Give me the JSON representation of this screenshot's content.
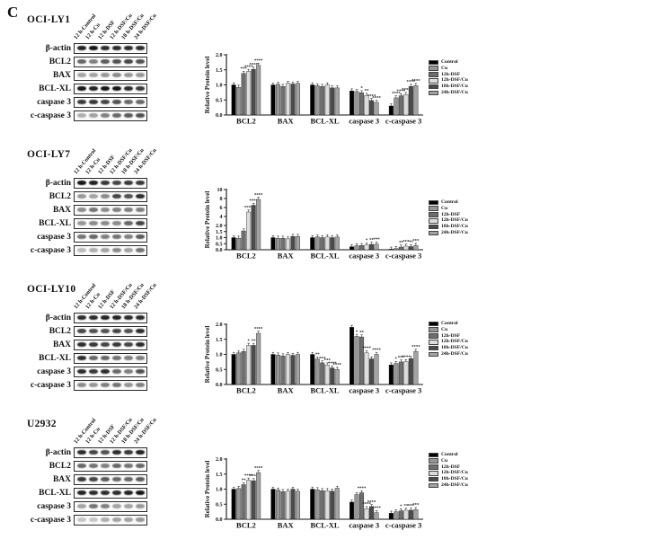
{
  "figure_label": "C",
  "lane_labels": [
    "12 h-Control",
    "12 h-Cu",
    "12 h-DSF",
    "12 h-DSF/Cu",
    "18 h-DSF/Cu",
    "24 h-DSF/Cu"
  ],
  "blot_targets": [
    "β-actin",
    "BCL2",
    "BAX",
    "BCL-XL",
    "caspase 3",
    "c-caspase 3"
  ],
  "legend": {
    "labels": [
      "Control",
      "Cu",
      "12h-DSF",
      "12h-DSF/Cu",
      "18h-DSF/Cu",
      "24h-DSF/Cu"
    ],
    "colors": [
      "#000000",
      "#969696",
      "#6e6e6e",
      "#dcdcdc",
      "#4b4b4b",
      "#a3a3a3"
    ],
    "position": "right"
  },
  "panels": [
    {
      "cell_line": "OCI-LY1",
      "blot_bands": [
        [
          0.9,
          0.95,
          0.85,
          0.85,
          0.85,
          0.85
        ],
        [
          0.6,
          0.5,
          0.65,
          0.7,
          0.75,
          0.7
        ],
        [
          0.35,
          0.35,
          0.4,
          0.45,
          0.4,
          0.4
        ],
        [
          0.95,
          0.9,
          0.95,
          0.95,
          0.85,
          0.8
        ],
        [
          0.8,
          0.8,
          0.75,
          0.7,
          0.6,
          0.6
        ],
        [
          0.3,
          0.35,
          0.5,
          0.6,
          0.65,
          0.7
        ]
      ]
    },
    {
      "cell_line": "OCI-LY7",
      "blot_bands": [
        [
          0.95,
          0.9,
          0.8,
          0.75,
          0.8,
          0.8
        ],
        [
          0.4,
          0.35,
          0.45,
          0.75,
          0.7,
          0.85
        ],
        [
          0.45,
          0.55,
          0.45,
          0.5,
          0.5,
          0.5
        ],
        [
          0.4,
          0.45,
          0.45,
          0.45,
          0.6,
          0.75
        ],
        [
          0.55,
          0.6,
          0.5,
          0.55,
          0.5,
          0.65
        ],
        [
          0.25,
          0.3,
          0.35,
          0.45,
          0.35,
          0.55
        ]
      ]
    },
    {
      "cell_line": "OCI-LY10",
      "blot_bands": [
        [
          0.85,
          0.85,
          0.9,
          0.9,
          0.85,
          0.85
        ],
        [
          0.75,
          0.7,
          0.7,
          0.75,
          0.7,
          0.85
        ],
        [
          0.85,
          0.8,
          0.75,
          0.8,
          0.75,
          0.85
        ],
        [
          0.85,
          0.6,
          0.6,
          0.55,
          0.5,
          0.5
        ],
        [
          0.85,
          0.8,
          0.85,
          0.6,
          0.5,
          0.7
        ],
        [
          0.45,
          0.4,
          0.5,
          0.55,
          0.4,
          0.5
        ]
      ]
    },
    {
      "cell_line": "U2932",
      "blot_bands": [
        [
          0.85,
          0.75,
          0.7,
          0.85,
          0.8,
          0.9
        ],
        [
          0.6,
          0.55,
          0.5,
          0.6,
          0.55,
          0.6
        ],
        [
          0.8,
          0.75,
          0.65,
          0.6,
          0.6,
          0.65
        ],
        [
          0.9,
          0.85,
          0.85,
          0.85,
          0.9,
          0.95
        ],
        [
          0.35,
          0.55,
          0.5,
          0.35,
          0.35,
          0.4
        ],
        [
          0.2,
          0.2,
          0.3,
          0.35,
          0.35,
          0.4
        ]
      ]
    }
  ],
  "chart_data": [
    {
      "type": "bar",
      "title": "OCI-LY1",
      "ylabel": "Relative Protein level",
      "ylim": [
        0,
        2
      ],
      "ybreak": null,
      "yticks": [
        "0.0",
        "0.5",
        "1.0",
        "1.5",
        "2.0"
      ],
      "categories": [
        "BCL2",
        "BAX",
        "BCL-XL",
        "caspase 3",
        "c-caspase 3"
      ],
      "series": [
        {
          "name": "Control",
          "values": [
            1.0,
            1.0,
            1.0,
            0.8,
            0.3
          ]
        },
        {
          "name": "Cu",
          "values": [
            0.92,
            1.02,
            0.97,
            0.78,
            0.57
          ]
        },
        {
          "name": "12h-DSF",
          "values": [
            1.38,
            0.95,
            0.95,
            0.74,
            0.64
          ]
        },
        {
          "name": "12h-DSF/Cu",
          "values": [
            1.45,
            1.05,
            1.0,
            0.65,
            0.68
          ]
        },
        {
          "name": "18h-DSF/Cu",
          "values": [
            1.52,
            1.03,
            0.9,
            0.48,
            0.95
          ]
        },
        {
          "name": "24h-DSF/Cu",
          "values": [
            1.65,
            1.05,
            0.9,
            0.42,
            0.98
          ]
        }
      ],
      "significance": [
        [
          "",
          "",
          "***",
          "****",
          "****",
          "****"
        ],
        [
          "",
          "",
          "",
          "",
          "",
          ""
        ],
        [
          "",
          "",
          "",
          "",
          "",
          ""
        ],
        [
          "",
          "",
          "*",
          "**",
          "****",
          "****"
        ],
        [
          "",
          "****",
          "****",
          "****",
          "****",
          "****"
        ]
      ]
    },
    {
      "type": "bar",
      "title": "OCI-LY7",
      "ylabel": "Relative Protein level",
      "ylim": [
        0,
        10
      ],
      "ybreak": 2,
      "yticks": [
        "0.0",
        "0.5",
        "1.0",
        "1.5",
        "2.0",
        "4",
        "6",
        "8",
        "10"
      ],
      "categories": [
        "BCL2",
        "BAX",
        "BCL-XL",
        "caspase 3",
        "c-caspase 3"
      ],
      "series": [
        {
          "name": "Control",
          "values": [
            1.0,
            1.0,
            1.0,
            0.25,
            0.05
          ]
        },
        {
          "name": "Cu",
          "values": [
            0.95,
            0.95,
            1.05,
            0.33,
            0.1
          ]
        },
        {
          "name": "12h-DSF",
          "values": [
            1.55,
            0.95,
            1.0,
            0.35,
            0.22
          ]
        },
        {
          "name": "12h-DSF/Cu",
          "values": [
            5.0,
            0.9,
            1.05,
            0.4,
            0.3
          ]
        },
        {
          "name": "18h-DSF/Cu",
          "values": [
            6.5,
            1.1,
            1.0,
            0.44,
            0.26
          ]
        },
        {
          "name": "24h-DSF/Cu",
          "values": [
            7.8,
            1.1,
            1.05,
            0.46,
            0.36
          ]
        }
      ],
      "significance": [
        [
          "",
          "",
          "",
          "****",
          "****",
          "****"
        ],
        [
          "",
          "",
          "",
          "",
          "",
          ""
        ],
        [
          "",
          "",
          "",
          "",
          "",
          ""
        ],
        [
          "",
          "",
          "",
          "*",
          "**",
          "***"
        ],
        [
          "",
          "",
          "**",
          "***",
          "**",
          "***"
        ]
      ]
    },
    {
      "type": "bar",
      "title": "OCI-LY10",
      "ylabel": "Relative Protein level",
      "ylim": [
        0,
        2
      ],
      "ybreak": null,
      "yticks": [
        "0.0",
        "0.5",
        "1.0",
        "1.5",
        "2.0"
      ],
      "categories": [
        "BCL2",
        "BAX",
        "BCL-XL",
        "caspase 3",
        "c-caspase 3"
      ],
      "series": [
        {
          "name": "Control",
          "values": [
            1.0,
            1.0,
            1.0,
            1.9,
            0.65
          ]
        },
        {
          "name": "Cu",
          "values": [
            1.05,
            0.98,
            0.85,
            1.6,
            0.7
          ]
        },
        {
          "name": "12h-DSF",
          "values": [
            1.1,
            0.95,
            0.72,
            1.58,
            0.75
          ]
        },
        {
          "name": "12h-DSF/Cu",
          "values": [
            1.3,
            1.0,
            0.65,
            1.05,
            0.76
          ]
        },
        {
          "name": "18h-DSF/Cu",
          "values": [
            1.3,
            0.97,
            0.55,
            0.85,
            0.86
          ]
        },
        {
          "name": "24h-DSF/Cu",
          "values": [
            1.7,
            1.0,
            0.5,
            1.0,
            1.1
          ]
        }
      ],
      "significance": [
        [
          "",
          "",
          "",
          "*",
          "**",
          "****"
        ],
        [
          "",
          "",
          "",
          "",
          "",
          ""
        ],
        [
          "",
          "**",
          "***",
          "***",
          "****",
          "****"
        ],
        [
          "",
          "*",
          "**",
          "****",
          "",
          "****"
        ],
        [
          "",
          "*",
          "***",
          "****",
          "",
          "****"
        ]
      ]
    },
    {
      "type": "bar",
      "title": "U2932",
      "ylabel": "Relative Protein level",
      "ylim": [
        0,
        2
      ],
      "ybreak": null,
      "yticks": [
        "0.0",
        "0.5",
        "1.0",
        "1.5",
        "2.0"
      ],
      "categories": [
        "BCL2",
        "BAX",
        "BCL-XL",
        "caspase 3",
        "c-caspase 3"
      ],
      "series": [
        {
          "name": "Control",
          "values": [
            1.0,
            1.0,
            1.0,
            0.57,
            0.2
          ]
        },
        {
          "name": "Cu",
          "values": [
            1.02,
            0.97,
            0.98,
            0.82,
            0.25
          ]
        },
        {
          "name": "12h-DSF",
          "values": [
            1.15,
            0.92,
            0.95,
            0.88,
            0.28
          ]
        },
        {
          "name": "12h-DSF/Cu",
          "values": [
            1.3,
            0.93,
            0.95,
            0.35,
            0.3
          ]
        },
        {
          "name": "18h-DSF/Cu",
          "values": [
            1.28,
            1.0,
            0.93,
            0.42,
            0.3
          ]
        },
        {
          "name": "24h-DSF/Cu",
          "values": [
            1.55,
            0.93,
            1.03,
            0.22,
            0.32
          ]
        }
      ],
      "significance": [
        [
          "",
          "",
          "**",
          "****",
          "****",
          "****"
        ],
        [
          "",
          "",
          "",
          "",
          "",
          ""
        ],
        [
          "",
          "",
          "",
          "",
          "",
          ""
        ],
        [
          "",
          "",
          "****",
          "****",
          "****",
          "****"
        ],
        [
          "",
          "",
          "*",
          "**",
          "***",
          "***"
        ]
      ]
    }
  ]
}
